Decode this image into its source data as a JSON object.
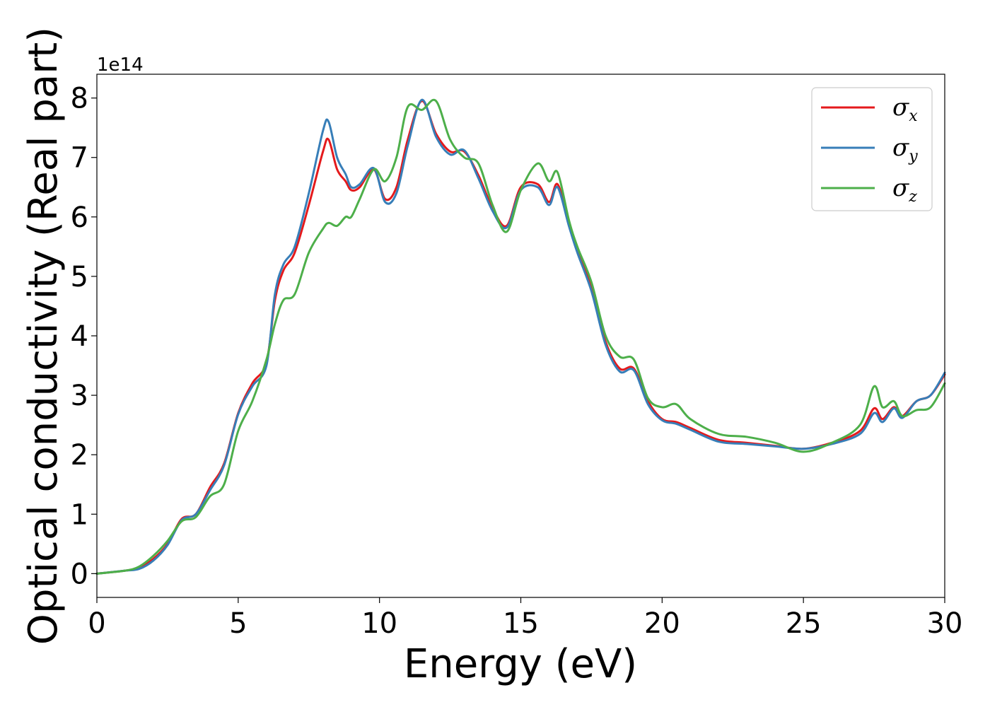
{
  "chart_data": {
    "type": "line",
    "xlabel": "Energy (eV)",
    "ylabel": "Optical conductivity (Real part)",
    "y_offset_text": "1e14",
    "xlim": [
      0,
      30
    ],
    "ylim": [
      -0.4,
      8.4
    ],
    "y_scale_multiplier": 100000000000000.0,
    "xticks": [
      0,
      5,
      10,
      15,
      20,
      25,
      30
    ],
    "yticks": [
      0,
      1,
      2,
      3,
      4,
      5,
      6,
      7,
      8
    ],
    "grid": false,
    "legend_position": "top-right",
    "series": [
      {
        "name": "σx",
        "symbol": "σ",
        "subscript": "x",
        "color": "#e41a1c",
        "x": [
          0,
          1,
          1.5,
          2,
          2.5,
          3,
          3.5,
          4,
          4.5,
          5,
          5.5,
          6,
          6.3,
          6.6,
          7,
          7.5,
          8,
          8.2,
          8.5,
          8.8,
          9,
          9.3,
          9.8,
          10.2,
          10.6,
          11,
          11.5,
          12,
          12.5,
          13,
          13.5,
          14,
          14.5,
          15,
          15.6,
          16,
          16.3,
          16.7,
          17,
          17.5,
          18,
          18.5,
          19,
          19.5,
          20,
          20.5,
          21,
          22,
          23,
          24,
          25,
          26,
          27,
          27.5,
          27.8,
          28.2,
          28.5,
          29,
          29.5,
          30
        ],
        "y": [
          0,
          0.05,
          0.1,
          0.25,
          0.5,
          0.92,
          1,
          1.45,
          1.85,
          2.7,
          3.2,
          3.55,
          4.6,
          5.1,
          5.4,
          6.2,
          7.1,
          7.3,
          6.8,
          6.6,
          6.45,
          6.5,
          6.8,
          6.3,
          6.5,
          7.3,
          7.95,
          7.4,
          7.1,
          7.1,
          6.7,
          6.15,
          5.85,
          6.5,
          6.55,
          6.25,
          6.55,
          5.9,
          5.45,
          4.8,
          3.9,
          3.45,
          3.45,
          2.9,
          2.6,
          2.55,
          2.45,
          2.25,
          2.2,
          2.15,
          2.1,
          2.2,
          2.4,
          2.78,
          2.6,
          2.8,
          2.65,
          2.9,
          3.0,
          3.35
        ]
      },
      {
        "name": "σy",
        "symbol": "σ",
        "subscript": "y",
        "color": "#377eb8",
        "x": [
          0,
          1,
          1.5,
          2,
          2.5,
          3,
          3.5,
          4,
          4.5,
          5,
          5.5,
          6,
          6.3,
          6.6,
          7,
          7.5,
          8,
          8.2,
          8.5,
          8.8,
          9,
          9.3,
          9.8,
          10.2,
          10.6,
          11,
          11.5,
          12,
          12.5,
          13,
          13.5,
          14,
          14.5,
          15,
          15.6,
          16,
          16.3,
          16.7,
          17,
          17.5,
          18,
          18.5,
          19,
          19.5,
          20,
          20.5,
          21,
          22,
          23,
          24,
          25,
          26,
          27,
          27.5,
          27.8,
          28.2,
          28.5,
          29,
          29.5,
          30
        ],
        "y": [
          0,
          0.05,
          0.08,
          0.22,
          0.48,
          0.9,
          1,
          1.4,
          1.82,
          2.68,
          3.15,
          3.5,
          4.7,
          5.2,
          5.5,
          6.4,
          7.45,
          7.6,
          7.0,
          6.72,
          6.5,
          6.55,
          6.82,
          6.25,
          6.4,
          7.2,
          7.97,
          7.35,
          7.05,
          7.12,
          6.65,
          6.1,
          5.82,
          6.45,
          6.5,
          6.2,
          6.5,
          5.85,
          5.4,
          4.75,
          3.85,
          3.4,
          3.42,
          2.85,
          2.58,
          2.52,
          2.42,
          2.22,
          2.18,
          2.14,
          2.1,
          2.18,
          2.35,
          2.7,
          2.55,
          2.78,
          2.62,
          2.9,
          3.0,
          3.38
        ]
      },
      {
        "name": "σz",
        "symbol": "σ",
        "subscript": "z",
        "color": "#4daf4a",
        "x": [
          0,
          1,
          1.5,
          2,
          2.5,
          3,
          3.5,
          4,
          4.5,
          5,
          5.5,
          6,
          6.3,
          6.6,
          7,
          7.5,
          8,
          8.2,
          8.5,
          8.8,
          9,
          9.3,
          9.8,
          10.2,
          10.6,
          11,
          11.5,
          12,
          12.5,
          13,
          13.5,
          14,
          14.5,
          15,
          15.6,
          16,
          16.3,
          16.7,
          17,
          17.5,
          18,
          18.5,
          19,
          19.5,
          20,
          20.5,
          21,
          22,
          23,
          24,
          25,
          26,
          27,
          27.5,
          27.8,
          28.2,
          28.5,
          29,
          29.5,
          30
        ],
        "y": [
          0,
          0.05,
          0.12,
          0.3,
          0.55,
          0.88,
          0.95,
          1.3,
          1.5,
          2.4,
          2.9,
          3.6,
          4.2,
          4.6,
          4.7,
          5.4,
          5.8,
          5.9,
          5.85,
          6.0,
          6.0,
          6.3,
          6.8,
          6.6,
          7.0,
          7.85,
          7.8,
          7.95,
          7.3,
          7.0,
          6.9,
          6.2,
          5.75,
          6.45,
          6.9,
          6.6,
          6.75,
          5.95,
          5.5,
          4.9,
          4.0,
          3.65,
          3.6,
          2.95,
          2.8,
          2.85,
          2.6,
          2.35,
          2.3,
          2.2,
          2.05,
          2.2,
          2.5,
          3.15,
          2.8,
          2.9,
          2.65,
          2.75,
          2.8,
          3.2
        ]
      }
    ]
  }
}
